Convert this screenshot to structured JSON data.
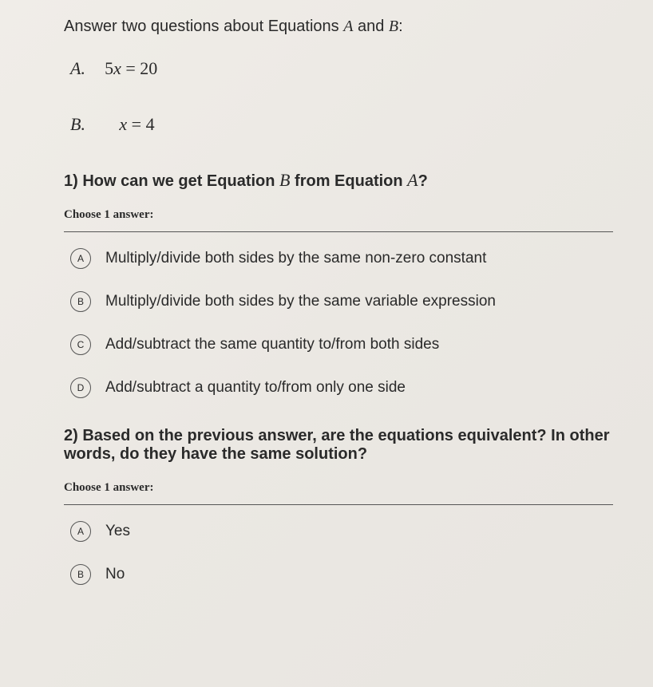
{
  "intro": {
    "before": "Answer two questions about Equations ",
    "A": "A",
    "mid": " and ",
    "B": "B",
    "after": ":"
  },
  "eqA": {
    "label": "A.",
    "lhs": "5",
    "var": "x",
    "eq": " = 20"
  },
  "eqB": {
    "label": "B.",
    "var": "x",
    "eq": " = 4"
  },
  "q1": {
    "before": "1) How can we get Equation ",
    "B": "B",
    "mid": " from Equation ",
    "A": "A",
    "after": "?",
    "choose": "Choose 1 answer:",
    "choices": {
      "A": {
        "letter": "A",
        "text": "Multiply/divide both sides by the same non-zero constant"
      },
      "B": {
        "letter": "B",
        "text": "Multiply/divide both sides by the same variable expression"
      },
      "C": {
        "letter": "C",
        "text": "Add/subtract the same quantity to/from both sides"
      },
      "D": {
        "letter": "D",
        "text": "Add/subtract a quantity to/from only one side"
      }
    }
  },
  "q2": {
    "text": "2) Based on the previous answer, are the equations equivalent? In other words, do they have the same solution?",
    "choose": "Choose 1 answer:",
    "choices": {
      "A": {
        "letter": "A",
        "text": "Yes"
      },
      "B": {
        "letter": "B",
        "text": "No"
      }
    }
  }
}
